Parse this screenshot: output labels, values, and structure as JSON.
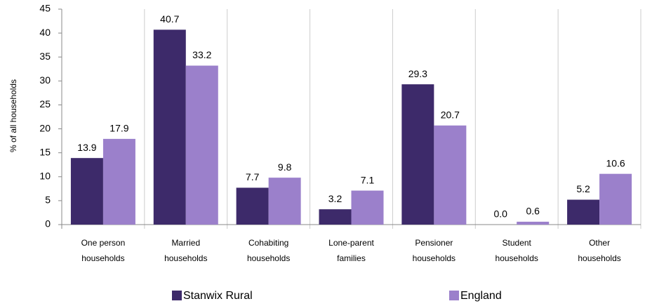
{
  "chart_data": {
    "type": "bar",
    "y_label": "% of all households",
    "categories": [
      "One person\nhouseholds",
      "Married\nhouseholds",
      "Cohabiting\nhouseholds",
      "Lone-parent\nfamilies",
      "Pensioner\nhouseholds",
      "Student\nhouseholds",
      "Other\nhouseholds"
    ],
    "series": [
      {
        "name": "Stanwix Rural",
        "color": "#3d2a6a",
        "values": [
          13.9,
          40.7,
          7.7,
          3.2,
          29.3,
          0,
          5.2
        ],
        "value_labels": [
          "13.9",
          "40.7",
          "7.7",
          "3.2",
          "29.3",
          "0.0",
          "5.2"
        ]
      },
      {
        "name": "England",
        "color": "#9b80cb",
        "values": [
          17.9,
          33.2,
          9.8,
          7.1,
          20.7,
          0.6,
          10.6
        ],
        "value_labels": [
          "17.9",
          "33.2",
          "9.8",
          "7.1",
          "20.7",
          "0.6",
          "10.6"
        ]
      }
    ],
    "ylim": [
      0,
      45
    ],
    "yticks": [
      0,
      5,
      10,
      15,
      20,
      25,
      30,
      35,
      40,
      45
    ]
  }
}
